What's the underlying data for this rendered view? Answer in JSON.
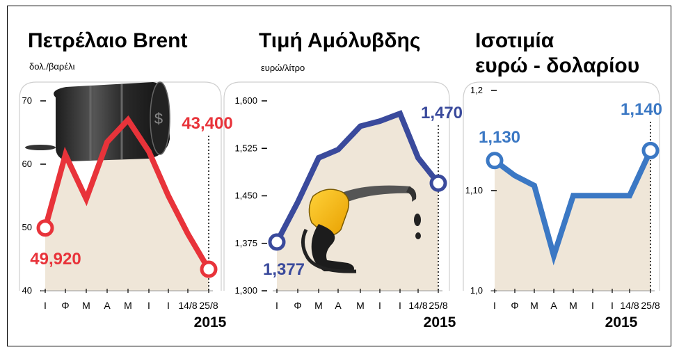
{
  "charts": [
    {
      "title_lines": [
        "Πετρέλαιο Brent"
      ],
      "unit": "δολ./βαρέλι",
      "year": "2015",
      "chart_data": {
        "type": "line",
        "categories": [
          "Ι",
          "Φ",
          "Μ",
          "Α",
          "Μ",
          "Ι",
          "Ι",
          "14/8",
          "25/8"
        ],
        "values": [
          49.92,
          61.5,
          54.5,
          63.5,
          67,
          62,
          55,
          49,
          43.4
        ],
        "yticks": [
          "70",
          "60",
          "50",
          "40"
        ],
        "ylim": [
          40,
          70
        ],
        "first_label": "49,920",
        "last_label": "43,400",
        "color": "#e8333a"
      }
    },
    {
      "title_lines": [
        "Τιμή Αμόλυβδης"
      ],
      "unit": "ευρώ/λίτρο",
      "year": "2015",
      "chart_data": {
        "type": "line",
        "categories": [
          "Ι",
          "Φ",
          "Μ",
          "Α",
          "Μ",
          "Ι",
          "Ι",
          "14/8",
          "25/8"
        ],
        "values": [
          1.377,
          1.44,
          1.51,
          1.523,
          1.56,
          1.568,
          1.58,
          1.51,
          1.47
        ],
        "yticks": [
          "1,600",
          "1,525",
          "1,450",
          "1,375",
          "1,300"
        ],
        "ylim": [
          1.3,
          1.6
        ],
        "first_label": "1,377",
        "last_label": "1,470",
        "color": "#3a4a9c"
      }
    },
    {
      "title_lines": [
        "Ισοτιμία",
        "ευρώ - δολαρίου"
      ],
      "unit": "",
      "year": "2015",
      "chart_data": {
        "type": "line",
        "categories": [
          "Ι",
          "Φ",
          "Μ",
          "Α",
          "Μ",
          "Ι",
          "Ι",
          "14/8",
          "25/8"
        ],
        "values": [
          1.13,
          1.115,
          1.105,
          1.035,
          1.095,
          1.095,
          1.095,
          1.095,
          1.14
        ],
        "yticks": [
          "1,2",
          "1,10",
          "1,0"
        ],
        "ylim": [
          1.0,
          1.2
        ],
        "first_label": "1,130",
        "last_label": "1,140",
        "color": "#3b78c4"
      }
    }
  ]
}
